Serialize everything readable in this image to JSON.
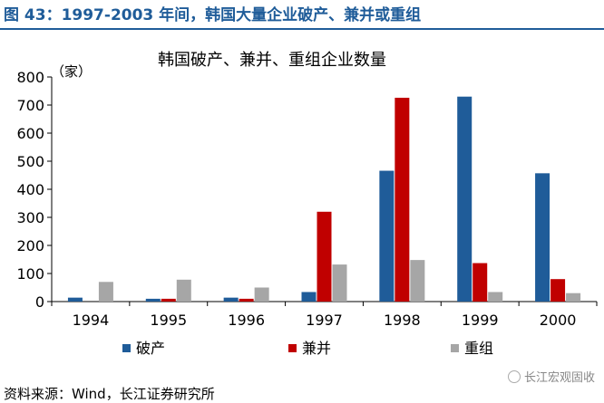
{
  "figure_title": "图 43：1997-2003 年间，韩国大量企业破产、兼并或重组",
  "source": "资料来源：Wind，长江证券研究所",
  "watermark": "长江宏观固收",
  "colors": {
    "title": "#1f5c99",
    "bankrupt": "#1f5c99",
    "merger": "#c00000",
    "restructure": "#a6a6a6"
  },
  "chart_data": {
    "type": "bar",
    "title": "韩国破产、兼并、重组企业数量",
    "ylabel": "（家）",
    "xlabel": "",
    "categories": [
      "1994",
      "1995",
      "1996",
      "1997",
      "1998",
      "1999",
      "2000"
    ],
    "series": [
      {
        "name": "破产",
        "values": [
          14,
          10,
          14,
          34,
          466,
          730,
          457
        ]
      },
      {
        "name": "兼并",
        "values": [
          0,
          10,
          10,
          320,
          726,
          137,
          80
        ]
      },
      {
        "name": "重组",
        "values": [
          70,
          78,
          50,
          132,
          148,
          34,
          30
        ]
      }
    ],
    "ylim": [
      0,
      800
    ],
    "yticks": [
      0,
      100,
      200,
      300,
      400,
      500,
      600,
      700,
      800
    ],
    "grid": false,
    "legend_position": "bottom"
  }
}
